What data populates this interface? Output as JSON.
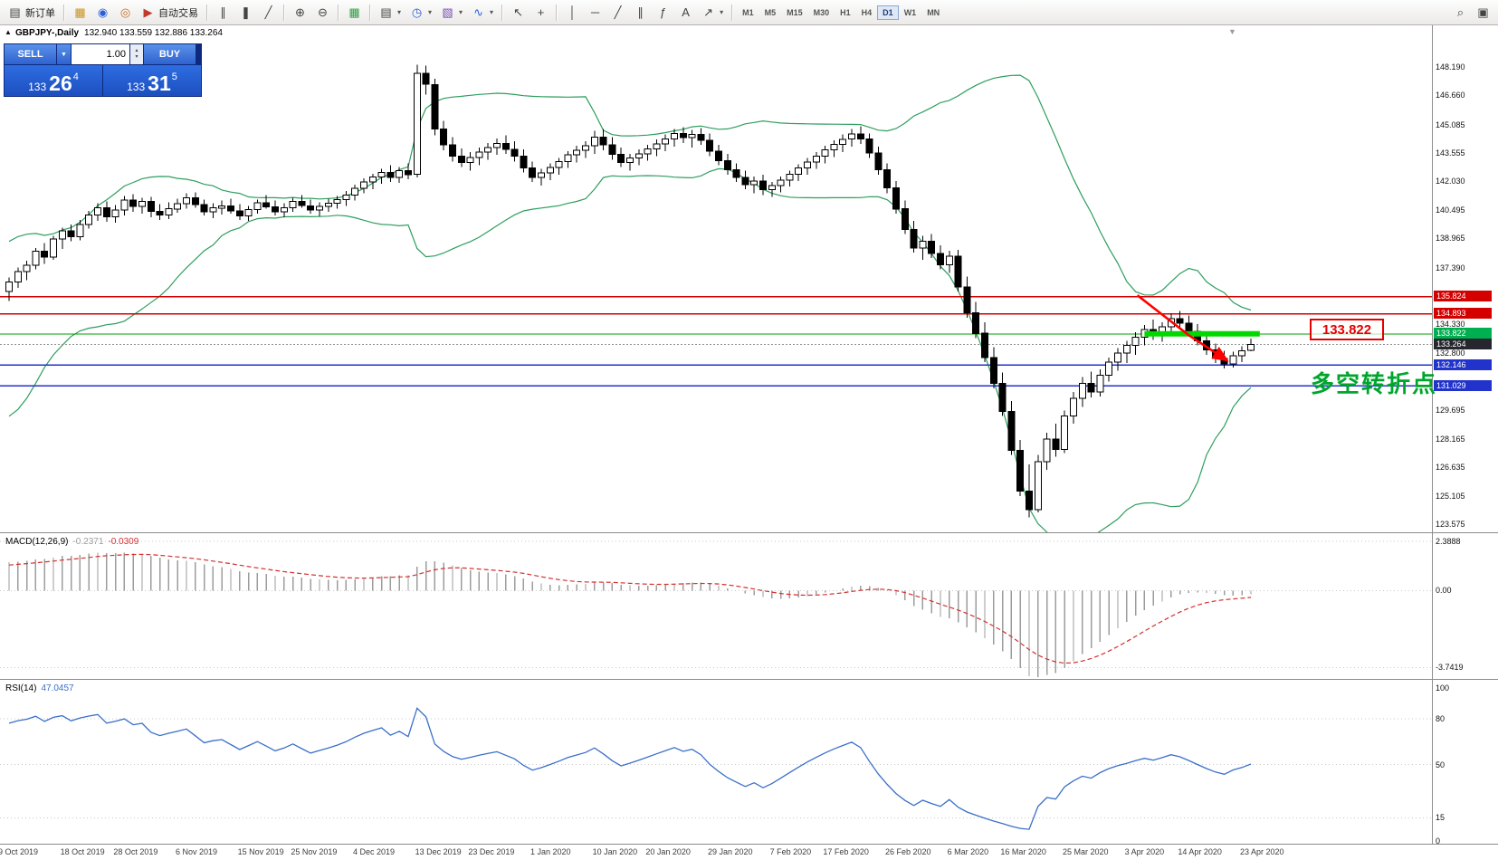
{
  "toolbar": {
    "new_order_label": "新订单",
    "auto_trading_label": "自动交易",
    "timeframes": [
      "M1",
      "M5",
      "M15",
      "M30",
      "H1",
      "H4",
      "D1",
      "W1",
      "MN"
    ],
    "active_timeframe": "D1",
    "glyphs": {
      "new_order": "▤",
      "profiles": "▦",
      "mql5": "◉",
      "community": "◎",
      "auto_trading": "▶",
      "bar_chart": "∥",
      "candle_chart": "❚",
      "line_chart": "╱",
      "zoom_in": "⊕",
      "zoom_out": "⊖",
      "tile": "▦",
      "new_chart": "▤",
      "period": "◷",
      "template": "▧",
      "indicators": "∿",
      "cursor": "↖",
      "crosshair": "+",
      "vline": "│",
      "hline": "─",
      "trend": "╱",
      "channel": "∥",
      "fibo": "ƒ",
      "text": "A",
      "arrow": "↗",
      "caret": "▾",
      "search": "⌕",
      "window": "▣"
    }
  },
  "chart": {
    "toggle_glyph": "▲",
    "symbol_period": "GBPJPY-,Daily",
    "ohlc": "132.940 133.559 132.886 133.264",
    "shift_marker_glyph": "▼"
  },
  "trade_panel": {
    "sell_label": "SELL",
    "buy_label": "BUY",
    "volume": "1.00",
    "dropdown_glyph": "▼",
    "spin_up": "▴",
    "spin_down": "▾",
    "sell_main": "133",
    "sell_big": "26",
    "sell_sup": "4",
    "buy_main": "133",
    "buy_big": "31",
    "buy_sup": "5"
  },
  "annotations": {
    "price_callout": "133.822",
    "turning_point": "多空转折点"
  },
  "price_axis": {
    "plain": [
      "148.190",
      "146.660",
      "145.085",
      "143.555",
      "142.030",
      "140.495",
      "138.965",
      "137.390",
      "134.330",
      "132.800",
      "129.695",
      "128.165",
      "126.635",
      "125.105",
      "123.575"
    ],
    "boxed": [
      {
        "text": "135.824",
        "bg": "#d40000"
      },
      {
        "text": "134.893",
        "bg": "#d40000"
      },
      {
        "text": "133.822",
        "bg": "#00b050"
      },
      {
        "text": "133.264",
        "bg": "#26262e"
      },
      {
        "text": "132.146",
        "bg": "#2233cc"
      },
      {
        "text": "131.029",
        "bg": "#2233cc"
      }
    ]
  },
  "macd": {
    "name": "MACD(12,26,9)",
    "main_value": "-0.2371",
    "signal_value": "-0.0309",
    "axis_labels": [
      "2.3888",
      "0.00",
      "-3.7419"
    ],
    "levels": [
      2.3888,
      0,
      -3.7419
    ],
    "ylim": [
      -4.3,
      2.75
    ]
  },
  "rsi": {
    "name": "RSI(14)",
    "value": "47.0457",
    "axis_labels": [
      "100",
      "80",
      "50",
      "15",
      "0"
    ],
    "levels": [
      80,
      50,
      15
    ],
    "ylim": [
      -2,
      105
    ]
  },
  "dates": [
    {
      "t": "9 Oct 2019",
      "bar": 0
    },
    {
      "t": "18 Oct 2019",
      "bar": 7
    },
    {
      "t": "28 Oct 2019",
      "bar": 13
    },
    {
      "t": "6 Nov 2019",
      "bar": 20
    },
    {
      "t": "15 Nov 2019",
      "bar": 27
    },
    {
      "t": "25 Nov 2019",
      "bar": 33
    },
    {
      "t": "4 Dec 2019",
      "bar": 40
    },
    {
      "t": "13 Dec 2019",
      "bar": 47
    },
    {
      "t": "23 Dec 2019",
      "bar": 53
    },
    {
      "t": "1 Jan 2020",
      "bar": 60
    },
    {
      "t": "10 Jan 2020",
      "bar": 67
    },
    {
      "t": "20 Jan 2020",
      "bar": 73
    },
    {
      "t": "29 Jan 2020",
      "bar": 80
    },
    {
      "t": "7 Feb 2020",
      "bar": 87
    },
    {
      "t": "17 Feb 2020",
      "bar": 93
    },
    {
      "t": "26 Feb 2020",
      "bar": 100
    },
    {
      "t": "6 Mar 2020",
      "bar": 107
    },
    {
      "t": "16 Mar 2020",
      "bar": 113
    },
    {
      "t": "25 Mar 2020",
      "bar": 120
    },
    {
      "t": "3 Apr 2020",
      "bar": 127
    },
    {
      "t": "14 Apr 2020",
      "bar": 133
    },
    {
      "t": "23 Apr 2020",
      "bar": 140
    }
  ],
  "chart_data": {
    "type": "candlestick",
    "symbol": "GBPJPY",
    "timeframe": "Daily",
    "ylim": [
      123.14,
      150.43
    ],
    "bb_period": 20,
    "bb_dev": 2,
    "colors": {
      "band": "#2e9e5e",
      "up": "#ffffff",
      "down": "#000000",
      "wick": "#000000"
    },
    "warmup_closes": [
      130.9,
      130.2,
      129.8,
      130.4,
      131.3,
      132.2,
      133.0,
      133.8,
      134.6,
      135.2,
      135.8,
      136.3,
      135.9,
      135.4,
      135.7,
      136.1,
      136.4,
      136.2,
      136.0
    ],
    "candles": [
      [
        136.1,
        136.85,
        135.6,
        136.62
      ],
      [
        136.62,
        137.4,
        136.3,
        137.18
      ],
      [
        137.18,
        137.75,
        136.7,
        137.52
      ],
      [
        137.52,
        138.45,
        137.3,
        138.26
      ],
      [
        138.26,
        138.7,
        137.6,
        137.95
      ],
      [
        137.95,
        139.1,
        137.8,
        138.92
      ],
      [
        138.92,
        139.55,
        138.4,
        139.36
      ],
      [
        139.36,
        139.7,
        138.8,
        139.05
      ],
      [
        139.05,
        139.95,
        138.85,
        139.72
      ],
      [
        139.72,
        140.45,
        139.5,
        140.21
      ],
      [
        140.21,
        140.85,
        139.9,
        140.62
      ],
      [
        140.62,
        140.95,
        139.85,
        140.12
      ],
      [
        140.12,
        140.75,
        139.8,
        140.48
      ],
      [
        140.48,
        141.25,
        140.2,
        141.02
      ],
      [
        141.02,
        141.35,
        140.4,
        140.68
      ],
      [
        140.68,
        141.15,
        140.3,
        140.95
      ],
      [
        140.95,
        141.2,
        140.1,
        140.42
      ],
      [
        140.42,
        140.8,
        139.95,
        140.22
      ],
      [
        140.22,
        140.9,
        140.0,
        140.55
      ],
      [
        140.55,
        141.1,
        140.35,
        140.84
      ],
      [
        140.84,
        141.4,
        140.55,
        141.15
      ],
      [
        141.15,
        141.45,
        140.6,
        140.78
      ],
      [
        140.78,
        141.05,
        140.2,
        140.38
      ],
      [
        140.38,
        140.85,
        140.05,
        140.6
      ],
      [
        140.6,
        141.0,
        140.25,
        140.72
      ],
      [
        140.72,
        141.1,
        140.3,
        140.45
      ],
      [
        140.45,
        140.8,
        139.95,
        140.18
      ],
      [
        140.18,
        140.7,
        139.9,
        140.52
      ],
      [
        140.52,
        141.05,
        140.3,
        140.88
      ],
      [
        140.88,
        141.3,
        140.55,
        140.65
      ],
      [
        140.65,
        141.0,
        140.2,
        140.4
      ],
      [
        140.4,
        140.85,
        140.1,
        140.62
      ],
      [
        140.62,
        141.15,
        140.4,
        140.95
      ],
      [
        140.95,
        141.3,
        140.6,
        140.72
      ],
      [
        140.72,
        141.05,
        140.3,
        140.5
      ],
      [
        140.5,
        140.9,
        140.15,
        140.68
      ],
      [
        140.68,
        141.1,
        140.4,
        140.85
      ],
      [
        140.85,
        141.25,
        140.55,
        141.05
      ],
      [
        141.05,
        141.5,
        140.7,
        141.3
      ],
      [
        141.3,
        141.85,
        141.0,
        141.66
      ],
      [
        141.66,
        142.2,
        141.4,
        142.0
      ],
      [
        142.0,
        142.45,
        141.6,
        142.26
      ],
      [
        142.26,
        142.7,
        141.9,
        142.52
      ],
      [
        142.52,
        142.9,
        142.0,
        142.25
      ],
      [
        142.25,
        142.8,
        141.95,
        142.6
      ],
      [
        142.6,
        143.0,
        142.15,
        142.4
      ],
      [
        142.4,
        148.3,
        142.25,
        147.85
      ],
      [
        147.85,
        148.25,
        146.7,
        147.25
      ],
      [
        147.25,
        147.55,
        144.5,
        144.85
      ],
      [
        144.85,
        145.3,
        143.7,
        144.0
      ],
      [
        144.0,
        144.4,
        143.1,
        143.38
      ],
      [
        143.38,
        143.8,
        142.8,
        143.05
      ],
      [
        143.05,
        143.6,
        142.6,
        143.32
      ],
      [
        143.32,
        143.85,
        142.9,
        143.6
      ],
      [
        143.6,
        144.1,
        143.2,
        143.85
      ],
      [
        143.85,
        144.35,
        143.45,
        144.08
      ],
      [
        144.08,
        144.5,
        143.5,
        143.75
      ],
      [
        143.75,
        144.2,
        143.1,
        143.4
      ],
      [
        143.4,
        143.75,
        142.5,
        142.75
      ],
      [
        142.75,
        143.1,
        142.0,
        142.25
      ],
      [
        142.25,
        142.7,
        141.8,
        142.48
      ],
      [
        142.48,
        143.0,
        142.1,
        142.78
      ],
      [
        142.78,
        143.3,
        142.4,
        143.1
      ],
      [
        143.1,
        143.65,
        142.75,
        143.45
      ],
      [
        143.45,
        143.95,
        143.05,
        143.7
      ],
      [
        143.7,
        144.2,
        143.3,
        143.95
      ],
      [
        143.95,
        144.75,
        143.5,
        144.42
      ],
      [
        144.42,
        144.85,
        143.7,
        144.0
      ],
      [
        144.0,
        144.4,
        143.2,
        143.48
      ],
      [
        143.48,
        143.85,
        142.8,
        143.05
      ],
      [
        143.05,
        143.5,
        142.6,
        143.28
      ],
      [
        143.28,
        143.75,
        142.9,
        143.52
      ],
      [
        143.52,
        144.0,
        143.15,
        143.78
      ],
      [
        143.78,
        144.3,
        143.4,
        144.05
      ],
      [
        144.05,
        144.55,
        143.65,
        144.32
      ],
      [
        144.32,
        144.85,
        143.9,
        144.6
      ],
      [
        144.6,
        144.95,
        144.1,
        144.38
      ],
      [
        144.38,
        144.8,
        143.85,
        144.55
      ],
      [
        144.55,
        144.9,
        144.0,
        144.25
      ],
      [
        144.25,
        144.6,
        143.4,
        143.65
      ],
      [
        143.65,
        144.0,
        142.9,
        143.15
      ],
      [
        143.15,
        143.5,
        142.4,
        142.65
      ],
      [
        142.65,
        143.0,
        142.0,
        142.25
      ],
      [
        142.25,
        142.6,
        141.6,
        141.85
      ],
      [
        141.85,
        142.3,
        141.4,
        142.05
      ],
      [
        142.05,
        142.4,
        141.3,
        141.58
      ],
      [
        141.58,
        142.0,
        141.2,
        141.8
      ],
      [
        141.8,
        142.3,
        141.45,
        142.1
      ],
      [
        142.1,
        142.6,
        141.75,
        142.42
      ],
      [
        142.42,
        142.95,
        142.05,
        142.75
      ],
      [
        142.75,
        143.3,
        142.4,
        143.08
      ],
      [
        143.08,
        143.6,
        142.7,
        143.4
      ],
      [
        143.4,
        143.95,
        143.0,
        143.72
      ],
      [
        143.72,
        144.25,
        143.35,
        144.02
      ],
      [
        144.02,
        144.55,
        143.6,
        144.3
      ],
      [
        144.3,
        144.85,
        143.9,
        144.58
      ],
      [
        144.58,
        145.0,
        144.05,
        144.32
      ],
      [
        144.32,
        144.6,
        143.3,
        143.55
      ],
      [
        143.55,
        143.9,
        142.4,
        142.65
      ],
      [
        142.65,
        143.0,
        141.4,
        141.68
      ],
      [
        141.68,
        142.05,
        140.3,
        140.55
      ],
      [
        140.55,
        141.0,
        139.2,
        139.45
      ],
      [
        139.45,
        139.9,
        138.2,
        138.45
      ],
      [
        138.45,
        139.1,
        137.8,
        138.8
      ],
      [
        138.8,
        139.2,
        137.9,
        138.15
      ],
      [
        138.15,
        138.6,
        137.3,
        137.55
      ],
      [
        137.55,
        138.3,
        137.1,
        138.0
      ],
      [
        138.0,
        138.35,
        136.1,
        136.35
      ],
      [
        136.35,
        136.9,
        134.7,
        134.95
      ],
      [
        134.95,
        135.55,
        133.6,
        133.85
      ],
      [
        133.85,
        134.45,
        132.3,
        132.55
      ],
      [
        132.55,
        133.1,
        130.9,
        131.15
      ],
      [
        131.15,
        131.75,
        129.4,
        129.65
      ],
      [
        129.65,
        130.2,
        127.3,
        127.55
      ],
      [
        127.55,
        128.1,
        125.1,
        125.35
      ],
      [
        125.35,
        126.8,
        123.95,
        124.35
      ],
      [
        124.35,
        127.3,
        124.2,
        126.95
      ],
      [
        126.95,
        128.5,
        126.5,
        128.15
      ],
      [
        128.15,
        129.0,
        127.2,
        127.6
      ],
      [
        127.6,
        129.7,
        127.4,
        129.4
      ],
      [
        129.4,
        130.7,
        129.0,
        130.35
      ],
      [
        130.35,
        131.5,
        129.9,
        131.15
      ],
      [
        131.15,
        131.8,
        130.4,
        130.7
      ],
      [
        130.7,
        131.9,
        130.45,
        131.6
      ],
      [
        131.6,
        132.55,
        131.25,
        132.3
      ],
      [
        132.3,
        133.05,
        131.85,
        132.8
      ],
      [
        132.8,
        133.45,
        132.25,
        133.2
      ],
      [
        133.2,
        133.9,
        132.7,
        133.65
      ],
      [
        133.65,
        134.3,
        133.2,
        134.05
      ],
      [
        134.05,
        134.6,
        133.5,
        133.8
      ],
      [
        133.8,
        134.45,
        133.4,
        134.2
      ],
      [
        134.2,
        134.9,
        133.8,
        134.65
      ],
      [
        134.65,
        135.05,
        134.1,
        134.4
      ],
      [
        134.4,
        134.8,
        133.7,
        133.95
      ],
      [
        133.95,
        134.35,
        133.2,
        133.45
      ],
      [
        133.45,
        133.85,
        132.7,
        132.95
      ],
      [
        132.95,
        133.3,
        132.25,
        132.5
      ],
      [
        132.5,
        132.9,
        131.95,
        132.2
      ],
      [
        132.2,
        132.85,
        132.0,
        132.65
      ],
      [
        132.65,
        133.15,
        132.3,
        132.9
      ],
      [
        132.94,
        133.56,
        132.89,
        133.26
      ]
    ],
    "hlines": [
      {
        "name": "resistance-line-135824",
        "value": 135.824,
        "color": "#d40000",
        "width": 1.2
      },
      {
        "name": "resistance-line-134893",
        "value": 134.893,
        "color": "#d40000",
        "width": 1.2
      },
      {
        "name": "key-level-line-133822",
        "value": 133.822,
        "color": "#00a000",
        "width": 1
      },
      {
        "name": "last-price-line-133264",
        "value": 133.264,
        "color": "#909090",
        "width": 1,
        "dash": "2,2"
      },
      {
        "name": "support-line-132146",
        "value": 132.146,
        "color": "#2233cc",
        "width": 1.2
      },
      {
        "name": "support-line-131029",
        "value": 131.029,
        "color": "#2233cc",
        "width": 1.4
      }
    ],
    "objects": {
      "thick_line": {
        "price": 133.822,
        "bar1": 128,
        "bar2": 141,
        "color": "#00d800"
      },
      "arrow": {
        "color": "#ff0000",
        "points": [
          [
            127.2,
            135.9
          ],
          [
            133.0,
            133.75
          ],
          [
            137.3,
            132.4
          ]
        ]
      }
    }
  }
}
